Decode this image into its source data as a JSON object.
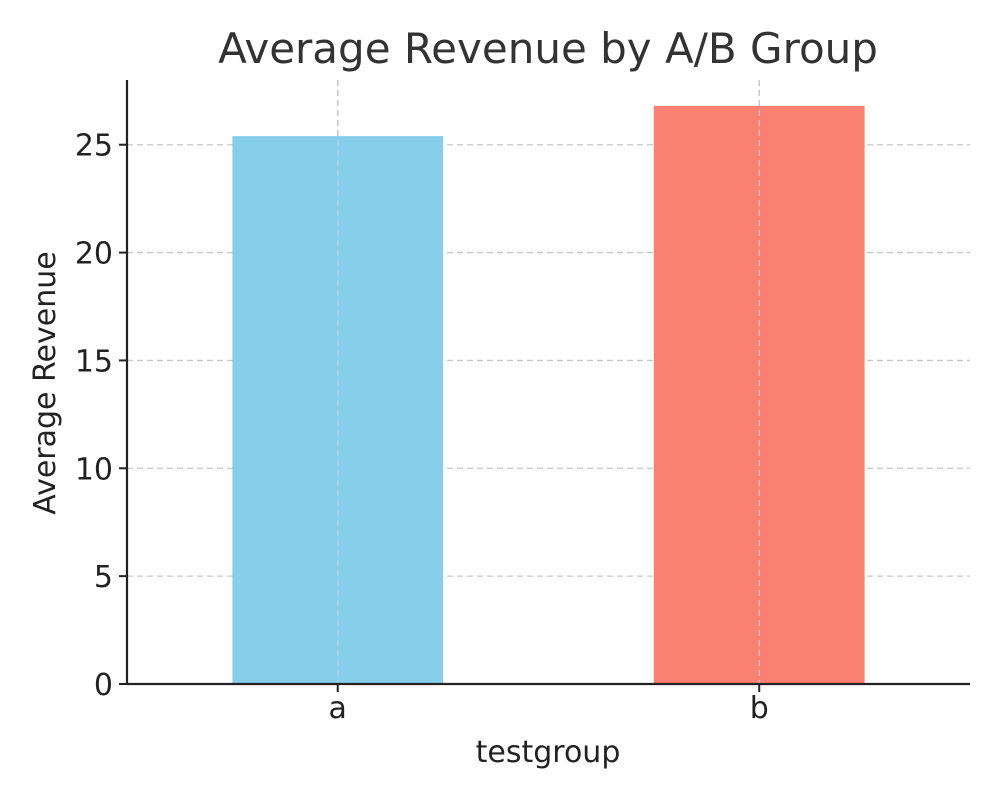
{
  "chart_data": {
    "type": "bar",
    "title": "Average Revenue by A/B Group",
    "xlabel": "testgroup",
    "ylabel": "Average Revenue",
    "categories": [
      "a",
      "b"
    ],
    "values": [
      25.4,
      26.8
    ],
    "ylim": [
      0,
      28
    ],
    "yticks": [
      0,
      5,
      10,
      15,
      20,
      25
    ],
    "bar_colors": [
      "#87CEEB",
      "#FA8072"
    ],
    "grid": true,
    "legend": null
  }
}
